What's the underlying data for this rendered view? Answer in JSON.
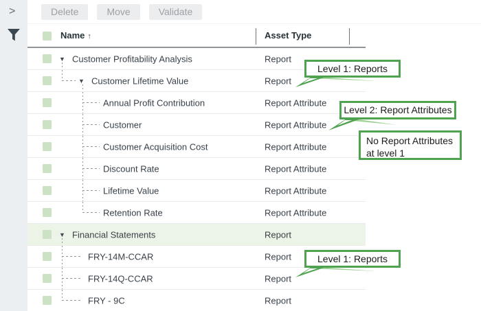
{
  "toolbar": {
    "buttons": [
      "Delete",
      "Move",
      "Validate"
    ]
  },
  "sidebar": {
    "expand_glyph": ">",
    "icons": [
      "chevron-right-icon",
      "filter-funnel-icon"
    ]
  },
  "table": {
    "columns": [
      {
        "label": "Name",
        "sort_icon": "↑",
        "sorted": "ascending"
      },
      {
        "label": "Asset Type"
      }
    ],
    "rows": [
      {
        "name": "Customer Profitability Analysis",
        "asset_type": "Report",
        "level": 0,
        "expanded": true
      },
      {
        "name": "Customer Lifetime Value",
        "asset_type": "Report",
        "level": 1,
        "expanded": true,
        "last_child": true
      },
      {
        "name": "Annual Profit Contribution",
        "asset_type": "Report Attribute",
        "level": 2
      },
      {
        "name": "Customer",
        "asset_type": "Report Attribute",
        "level": 2
      },
      {
        "name": "Customer Acquisition Cost",
        "asset_type": "Report Attribute",
        "level": 2
      },
      {
        "name": "Discount Rate",
        "asset_type": "Report Attribute",
        "level": 2
      },
      {
        "name": "Lifetime Value",
        "asset_type": "Report Attribute",
        "level": 2
      },
      {
        "name": "Retention Rate",
        "asset_type": "Report Attribute",
        "level": 2,
        "last_child": true
      },
      {
        "name": "Financial Statements",
        "asset_type": "Report",
        "level": 0,
        "expanded": true,
        "selected": true
      },
      {
        "name": "FRY-14M-CCAR",
        "asset_type": "Report",
        "level": 1
      },
      {
        "name": "FRY-14Q-CCAR",
        "asset_type": "Report",
        "level": 1
      },
      {
        "name": "FRY - 9C",
        "asset_type": "Report",
        "level": 1,
        "last_child": true
      }
    ]
  },
  "callouts": [
    {
      "text": "Level 1: Reports"
    },
    {
      "text": "Level 2: Report Attributes"
    },
    {
      "text": "No Report Attributes at level 1"
    },
    {
      "text": "Level 1: Reports"
    }
  ],
  "colors": {
    "callout_green": "#4fa24f",
    "swoosh_green": "#8cc984",
    "checkbox_green": "#cbe3c4",
    "selected_row_green": "#ebf4e7"
  }
}
